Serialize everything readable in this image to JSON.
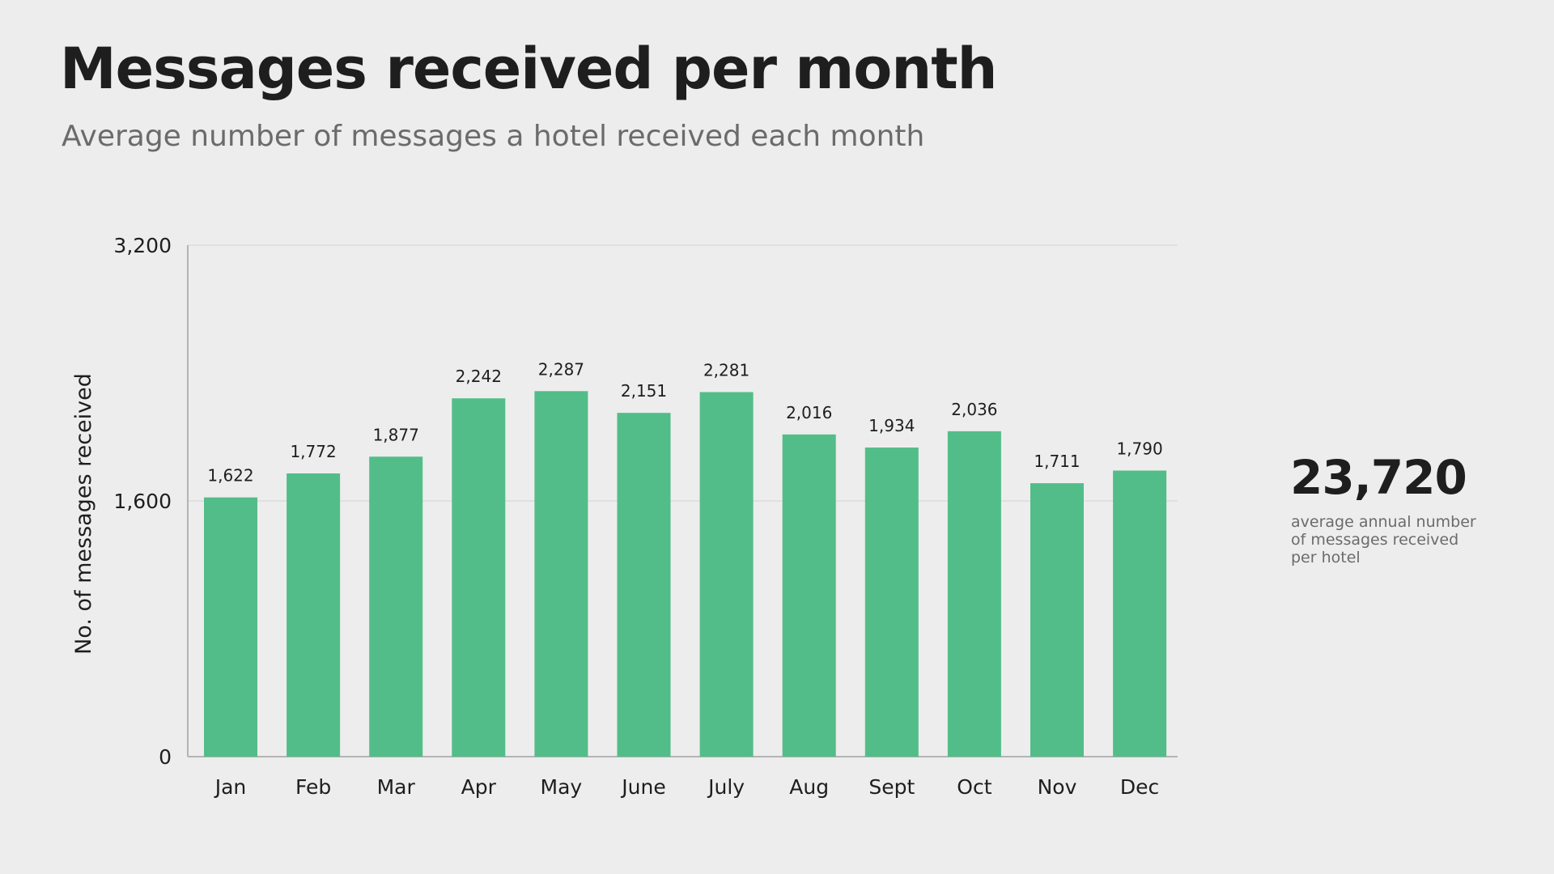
{
  "title": "Messages received per month",
  "subtitle": "Average number of messages a hotel received each month",
  "kpi": {
    "value": "23,720",
    "caption": "average annual number of messages received per hotel"
  },
  "colors": {
    "bar": "#52bd88",
    "text": "#1e1e1e",
    "muted": "#6b6b6b",
    "axis": "#b4b4b4",
    "grid": "#dcdcdc",
    "background": "#ededed"
  },
  "chart_data": {
    "type": "bar",
    "categories": [
      "Jan",
      "Feb",
      "Mar",
      "Apr",
      "May",
      "June",
      "July",
      "Aug",
      "Sept",
      "Oct",
      "Nov",
      "Dec"
    ],
    "values": [
      1622,
      1772,
      1877,
      2242,
      2287,
      2151,
      2281,
      2016,
      1934,
      2036,
      1711,
      1790
    ],
    "value_labels": [
      "1,622",
      "1,772",
      "1,877",
      "2,242",
      "2,287",
      "2,151",
      "2,281",
      "2,016",
      "1,934",
      "2,036",
      "1,711",
      "1,790"
    ],
    "title": "Messages received per month",
    "subtitle": "Average number of messages a hotel received each month",
    "xlabel": "",
    "ylabel": "No. of messages received",
    "ylim": [
      0,
      3200
    ],
    "yticks": [
      0,
      1600,
      3200
    ],
    "ytick_labels": [
      "0",
      "1,600",
      "3,200"
    ],
    "grid": true,
    "legend": "none"
  }
}
